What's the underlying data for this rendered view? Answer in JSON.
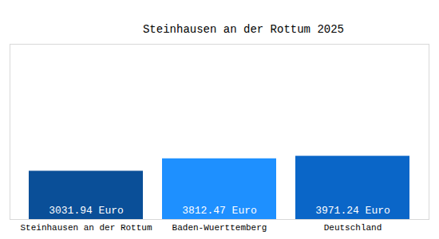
{
  "chart_data": {
    "type": "bar",
    "title": "Steinhausen an der Rottum 2025",
    "categories": [
      "Steinhausen an der Rottum",
      "Baden-Wuerttemberg",
      "Deutschland"
    ],
    "values": [
      3031.94,
      3812.47,
      3971.24
    ],
    "value_labels": [
      "3031.94 Euro",
      "3812.47 Euro",
      "3971.24 Euro"
    ],
    "colors": [
      "#0a4f98",
      "#1e90ff",
      "#0a66c8"
    ],
    "ylim": [
      0,
      11000
    ],
    "grid": false,
    "data_labels": true,
    "tick_labels": "x"
  }
}
